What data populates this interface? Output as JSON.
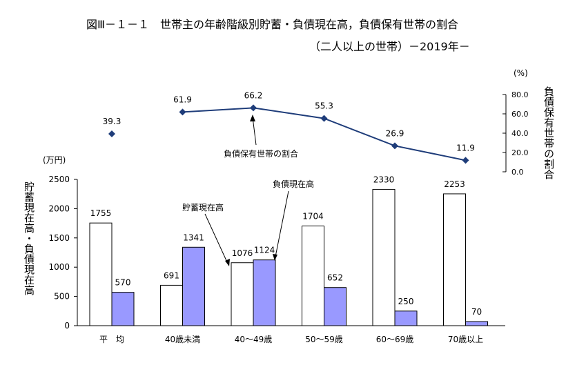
{
  "header": {
    "title": "図Ⅲ－１－１　世帯主の年齢階級別貯蓄・負債現在高，負債保有世帯の割合",
    "subtitle": "（二人以上の世帯）－2019年－"
  },
  "chart_data": [
    {
      "type": "bar",
      "ylabel": "貯蓄現在高・負債現在高",
      "unit_label": "(万円)",
      "ylim": [
        0,
        2500
      ],
      "yticks": [
        "0",
        "500",
        "1000",
        "1500",
        "2000",
        "2500"
      ],
      "categories": [
        "平　均",
        "40歳未満",
        "40～49歳",
        "50～59歳",
        "60～69歳",
        "70歳以上"
      ],
      "series": [
        {
          "name": "貯蓄現在高",
          "values": [
            1755,
            691,
            1076,
            1704,
            2330,
            2253
          ],
          "labels": [
            "1755",
            "691",
            "1076",
            "1704",
            "2330",
            "2253"
          ],
          "color": "#ffffff"
        },
        {
          "name": "負債現在高",
          "values": [
            570,
            1341,
            1124,
            652,
            250,
            70
          ],
          "labels": [
            "570",
            "1341",
            "1124",
            "652",
            "250",
            "70"
          ],
          "color": "#9999ff"
        }
      ],
      "grid": false
    },
    {
      "type": "line",
      "name": "負債保有世帯の割合",
      "ylabel": "負債保有世帯の割合",
      "unit_label": "(%)",
      "ylim": [
        0,
        80
      ],
      "yticks": [
        "0.0",
        "20.0",
        "40.0",
        "60.0",
        "80.0"
      ],
      "categories": [
        "平　均",
        "40歳未満",
        "40～49歳",
        "50～59歳",
        "60～69歳",
        "70歳以上"
      ],
      "values": [
        39.3,
        61.9,
        66.2,
        55.3,
        26.9,
        11.9
      ],
      "labels": [
        "39.3",
        "61.9",
        "66.2",
        "55.3",
        "26.9",
        "11.9"
      ],
      "color": "#1f3d7a",
      "note": "平均 is shown as an isolated marker (not connected)"
    }
  ],
  "annotations": {
    "savings": "貯蓄現在高",
    "debt": "負債現在高",
    "ratio": "負債保有世帯の割合"
  }
}
